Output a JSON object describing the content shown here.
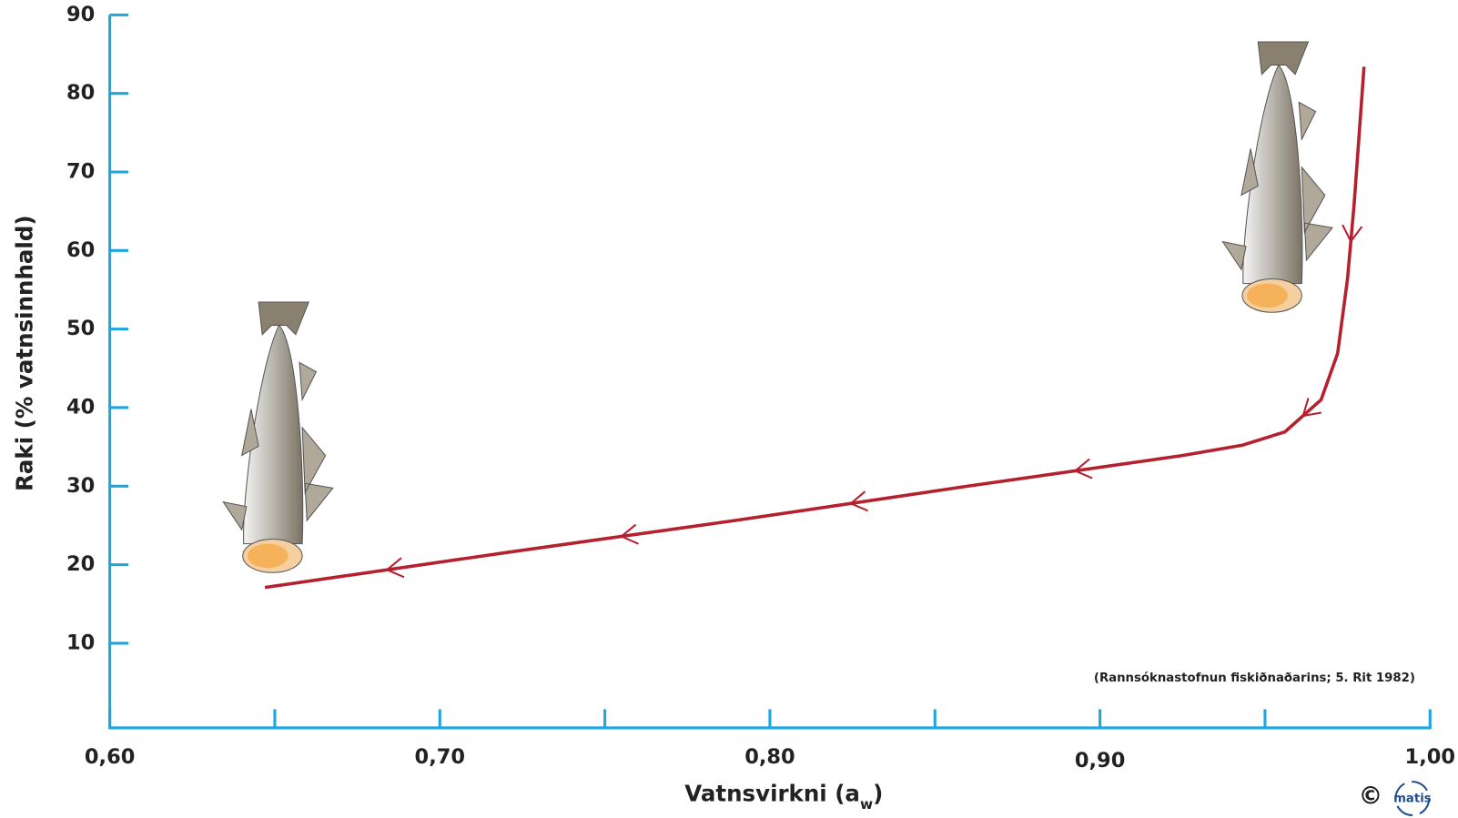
{
  "chart_data": {
    "type": "line",
    "ylabel": "Raki (% vatnsinnhald)",
    "xlabel": {
      "text": "Vatnsvirkni (a",
      "sub": "w",
      "close": ")"
    },
    "source": "(Rannsóknastofnun fiskiðnaðarins; 5. Rit 1982)",
    "copyright": "©",
    "logo": "matis",
    "xlim": [
      0.6,
      1.0
    ],
    "ylim": [
      0,
      90
    ],
    "xticks": [
      {
        "value": 0.6,
        "label": "0,60"
      },
      {
        "value": 0.7,
        "label": "0,70"
      },
      {
        "value": 0.8,
        "label": "0,80"
      },
      {
        "value": 0.9,
        "label": "0,90"
      },
      {
        "value": 1.0,
        "label": "1,00"
      }
    ],
    "x_minor_ticks": [
      0.65,
      0.75,
      0.85,
      0.95
    ],
    "yticks": [
      10,
      20,
      30,
      40,
      50,
      60,
      70,
      80,
      90
    ],
    "axis_color": "#1ba6e0",
    "series": [
      {
        "color": "#b5202e",
        "x": [
          0.647,
          0.721,
          0.789,
          0.86,
          0.925,
          0.943,
          0.956,
          0.967,
          0.972,
          0.975,
          0.977,
          0.98
        ],
        "values": [
          17.1,
          21.6,
          25.6,
          30.0,
          33.9,
          35.2,
          36.9,
          41.0,
          46.9,
          56.4,
          65.9,
          83.4
        ]
      }
    ]
  }
}
